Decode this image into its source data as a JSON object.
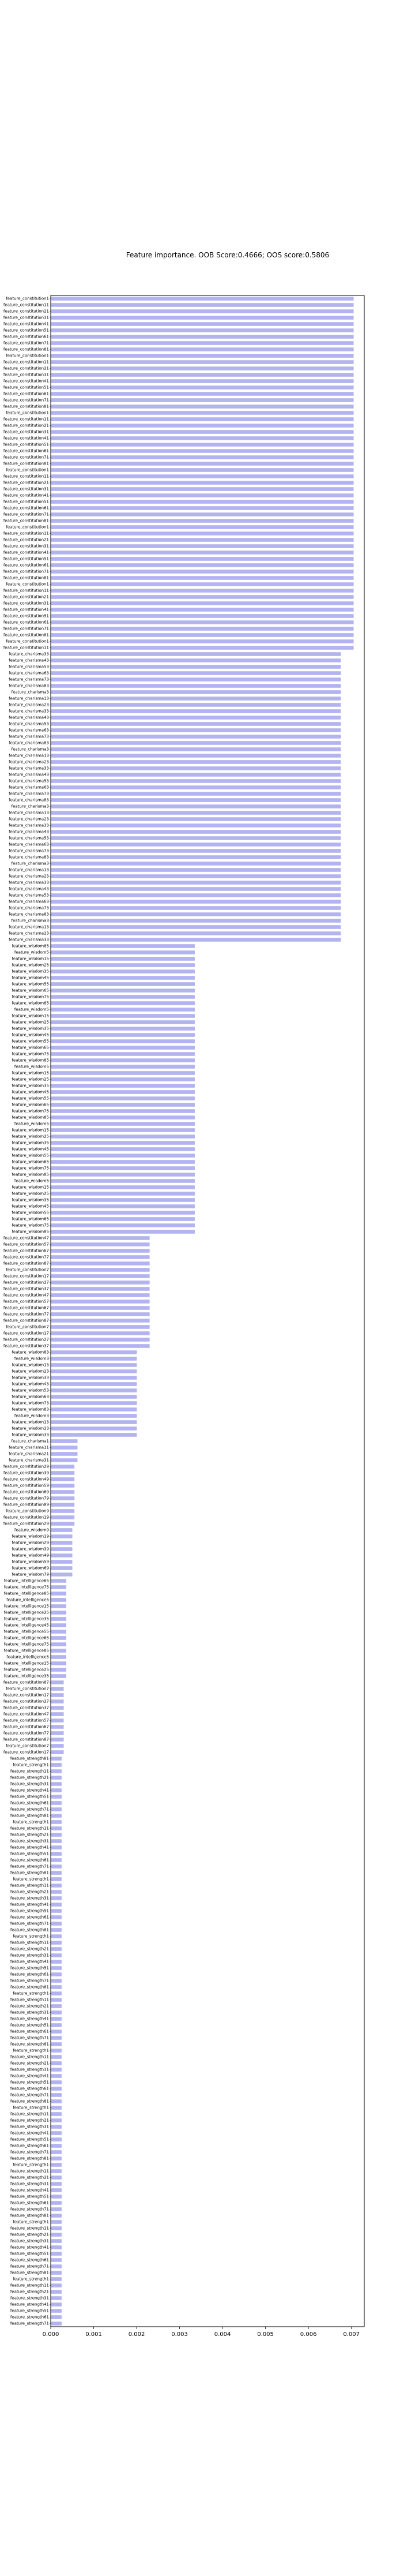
{
  "chart_data": {
    "type": "bar",
    "orientation": "horizontal",
    "title": "Feature importance. OOB Score:0.4666; OOS score:0.5806",
    "xlabel": "",
    "ylabel": "",
    "xlim": [
      0,
      0.0073
    ],
    "xticks": [
      "0.000",
      "0.001",
      "0.002",
      "0.003",
      "0.004",
      "0.005",
      "0.006",
      "0.007"
    ],
    "grid": false,
    "legend": "none",
    "bar_color": "#b3b3f2",
    "bar_edge_color": "#9a9ae0",
    "groups": [
      {
        "prefix": "feature_constitution",
        "count": 56,
        "value": 0.00705
      },
      {
        "prefix": "feature_charisma",
        "count": 46,
        "value": 0.00675
      },
      {
        "prefix": "feature_wisdom",
        "count": 46,
        "value": 0.00335
      },
      {
        "prefix": "feature_constitution",
        "count": 18,
        "value": 0.0023
      },
      {
        "prefix": "feature_wisdom",
        "count": 14,
        "value": 0.002
      },
      {
        "prefix": "feature_charisma",
        "count": 4,
        "value": 0.00062
      },
      {
        "prefix": "feature_constitution",
        "count": 10,
        "value": 0.00055
      },
      {
        "prefix": "feature_wisdom",
        "count": 8,
        "value": 0.0005
      },
      {
        "prefix": "feature_intelligence",
        "count": 16,
        "value": 0.00036
      },
      {
        "prefix": "feature_constitution",
        "count": 12,
        "value": 0.0003
      },
      {
        "prefix": "feature_strength",
        "count": 90,
        "value": 0.00025
      }
    ],
    "label_suffixes": [
      "1",
      "2",
      "3",
      "4",
      "5",
      "6",
      "7",
      "8",
      "9",
      "10",
      "11",
      "12",
      "13",
      "14",
      "15",
      "16",
      "17",
      "18",
      "19",
      "20",
      "21",
      "22",
      "23",
      "24",
      "25",
      "26",
      "27",
      "28",
      "29",
      "30",
      "31",
      "32",
      "33",
      "34",
      "35",
      "36",
      "37",
      "38",
      "39",
      "40",
      "41",
      "42",
      "43",
      "44",
      "45",
      "46",
      "47",
      "48",
      "49",
      "50",
      "51",
      "52",
      "53",
      "54",
      "55",
      "56",
      "57",
      "58",
      "59",
      "60",
      "61",
      "62",
      "63",
      "64",
      "65",
      "66",
      "67",
      "68",
      "69",
      "70",
      "71",
      "72",
      "73",
      "74",
      "75",
      "76",
      "77",
      "78",
      "79",
      "80",
      "81",
      "82",
      "83",
      "84",
      "85",
      "86",
      "87",
      "88",
      "89",
      "90"
    ]
  }
}
